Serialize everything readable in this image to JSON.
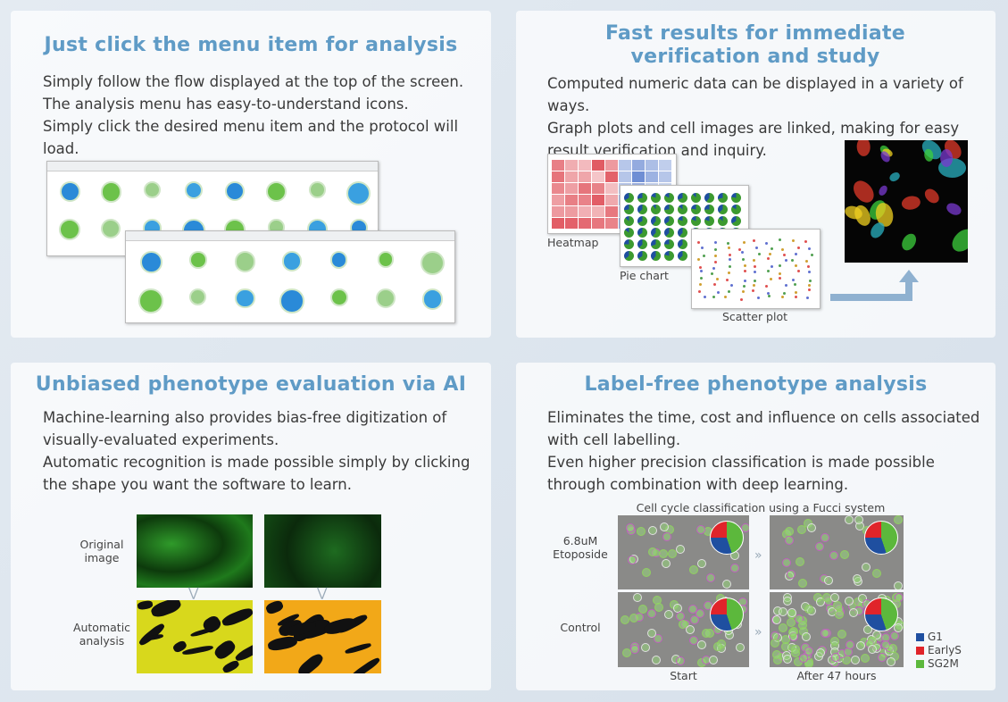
{
  "panels": [
    {
      "title": "Just click the menu item for analysis",
      "body": [
        "Simply follow the flow displayed at the top of the screen.",
        "The analysis menu has easy-to-understand icons.",
        "Simply click the desired menu item and the protocol will load."
      ]
    },
    {
      "title": "Fast results for immediate verification and study",
      "body": [
        "Computed numeric data can be displayed in a variety of ways.",
        "Graph plots and cell images are linked, making for easy result verification and inquiry."
      ],
      "figure_labels": [
        "Heatmap",
        "Pie chart",
        "Scatter plot"
      ]
    },
    {
      "title": "Unbiased phenotype evaluation via AI",
      "body": [
        "Machine-learning also provides bias-free digitization of visually-evaluated experiments.",
        "Automatic recognition is made possible simply by clicking the shape you want the software to learn."
      ],
      "row_labels": [
        "Original image",
        "Automatic analysis"
      ]
    },
    {
      "title": "Label-free phenotype analysis",
      "body": [
        "Eliminates the time, cost and influence on cells associated with cell labelling.",
        "Even higher precision classification is made possible through combination with deep learning."
      ],
      "figure_caption": "Cell cycle classification using a Fucci system",
      "row_labels": [
        "6.8uM Etoposide",
        "Control"
      ],
      "column_labels": [
        "Start",
        "After 47 hours"
      ],
      "legend": [
        {
          "name": "G1",
          "color": "#1f4fa0"
        },
        {
          "name": "EarlyS",
          "color": "#e0242a"
        },
        {
          "name": "SG2M",
          "color": "#5cb83c"
        }
      ]
    }
  ]
}
